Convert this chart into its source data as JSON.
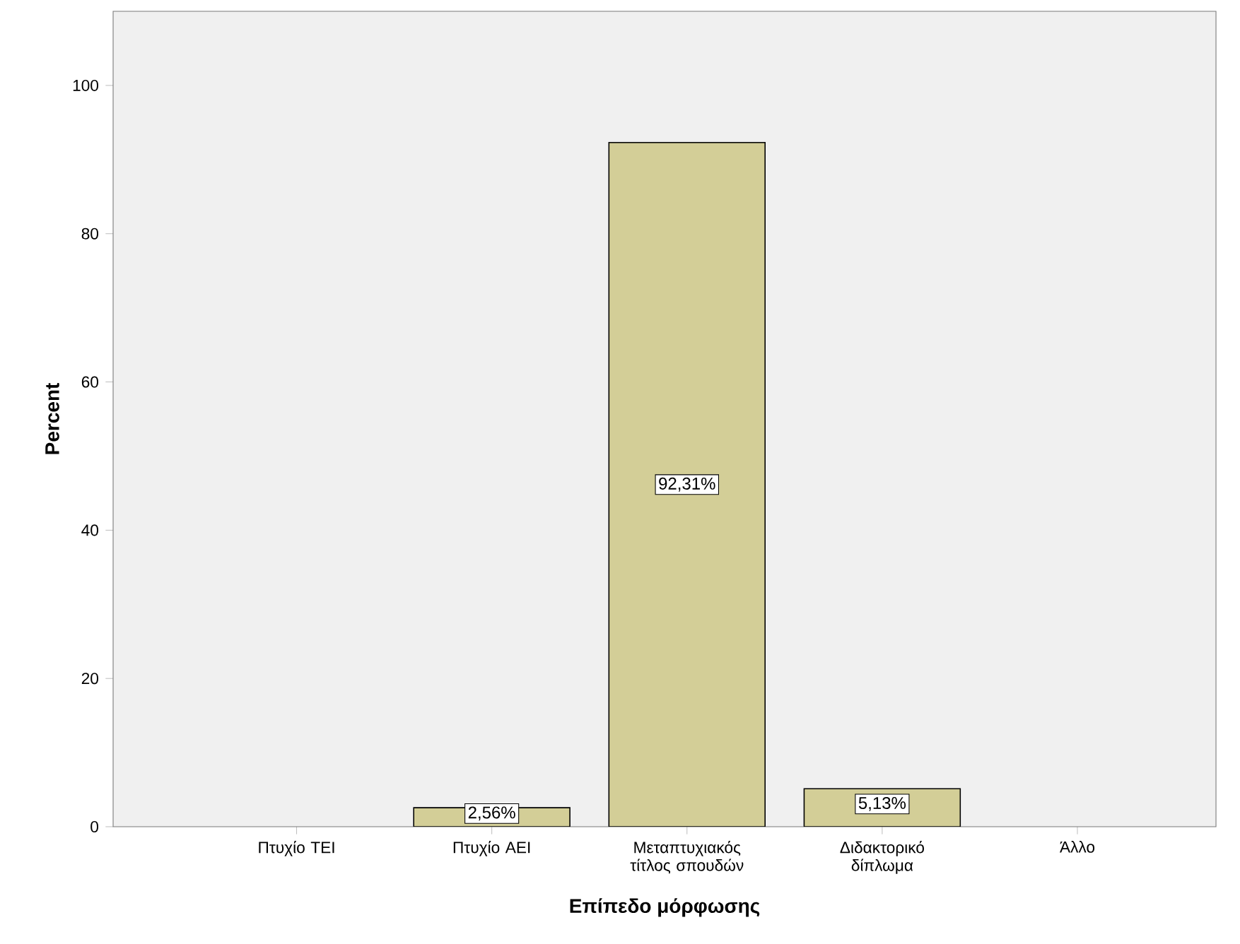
{
  "chart_data": {
    "type": "bar",
    "xlabel": "Επίπεδο μόρφωσης",
    "ylabel": "Percent",
    "categories": [
      "Πτυχίο ΤΕΙ",
      "Πτυχίο ΑΕΙ",
      "Μεταπτυχιακός τίτλος σπουδών",
      "Διδακτορικό δίπλωμα",
      "Άλλο"
    ],
    "values": [
      0,
      2.56,
      92.31,
      5.13,
      0
    ],
    "value_labels": [
      null,
      "2,56%",
      "92,31%",
      "5,13%",
      null
    ],
    "color": "#d3ce97",
    "ylim": [
      0,
      110
    ],
    "yticks": [
      0,
      20,
      40,
      60,
      80,
      100
    ]
  }
}
